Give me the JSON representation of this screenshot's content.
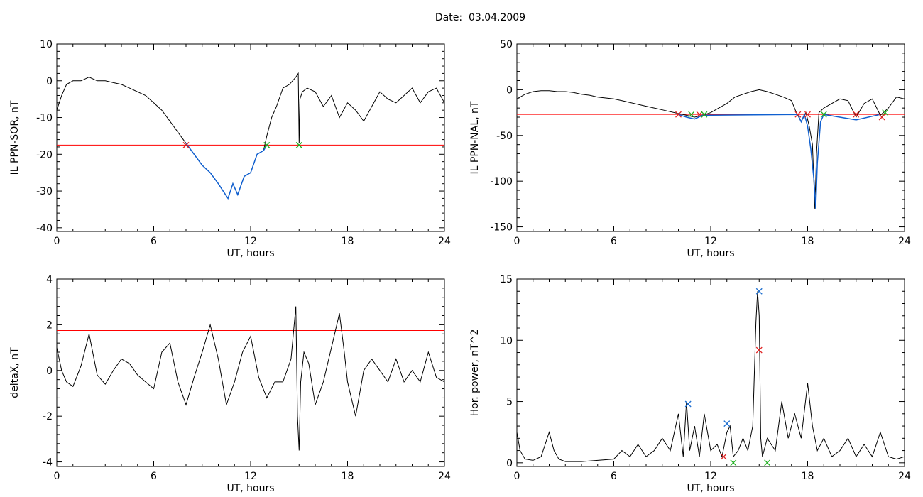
{
  "title": "Date:  03.04.2009",
  "colors": {
    "trace": "#000000",
    "threshold": "#ff0000",
    "highlight": "#1060d0",
    "marker_red": "#e02020",
    "marker_green": "#20b020",
    "marker_blue": "#2070d0"
  },
  "chart_data": [
    {
      "type": "line",
      "xlabel": "UT, hours",
      "ylabel": "IL PPN-SOR, nT",
      "xlim": [
        0,
        24
      ],
      "ylim": [
        -41,
        10
      ],
      "xticks": [
        "0",
        "6",
        "12",
        "18",
        "24"
      ],
      "xtick_values": [
        0,
        6,
        12,
        18,
        24
      ],
      "yticks": [
        "10",
        "0",
        "-10",
        "-20",
        "-30",
        "-40"
      ],
      "ytick_values": [
        10,
        0,
        -10,
        -20,
        -30,
        -40
      ],
      "threshold": -17.5,
      "series": [
        {
          "x": [
            0,
            0.3,
            0.6,
            1,
            1.5,
            2,
            2.5,
            3,
            3.5,
            4,
            4.5,
            5,
            5.5,
            6,
            6.5,
            7,
            7.5,
            8,
            8.5,
            9,
            9.5,
            10,
            10.3,
            10.6,
            10.9,
            11.2,
            11.6,
            12,
            12.4,
            12.8,
            13,
            13.3,
            13.6,
            14,
            14.4,
            14.6,
            14.8,
            14.95,
            15,
            15.05,
            15.2,
            15.5,
            16,
            16.5,
            17,
            17.5,
            18,
            18.5,
            19,
            19.5,
            20,
            20.5,
            21,
            21.5,
            22,
            22.5,
            23,
            23.5,
            24
          ],
          "y": [
            -8,
            -4,
            -1,
            0,
            0,
            1,
            0,
            0,
            -0.5,
            -1,
            -2,
            -3,
            -4,
            -6,
            -8,
            -11,
            -14,
            -17,
            -20,
            -23,
            -25,
            -28,
            -30,
            -32,
            -28,
            -31,
            -26,
            -25,
            -20,
            -19,
            -15,
            -10,
            -7,
            -2,
            -1,
            0,
            1,
            2,
            -17,
            -5,
            -3,
            -2,
            -3,
            -7,
            -4,
            -10,
            -6,
            -8,
            -11,
            -7,
            -3,
            -5,
            -6,
            -4,
            -2,
            -6,
            -3,
            -2,
            -6
          ]
        }
      ],
      "highlight": {
        "x": [
          8,
          8.5,
          9,
          9.5,
          10,
          10.3,
          10.6,
          10.9,
          11.2,
          11.6,
          12,
          12.4,
          12.8,
          13
        ],
        "y": [
          -17,
          -20,
          -23,
          -25,
          -28,
          -30,
          -32,
          -28,
          -31,
          -26,
          -25,
          -20,
          -19,
          -17.5
        ]
      },
      "markers": [
        {
          "x": 8,
          "y": -17.5,
          "color": "red"
        },
        {
          "x": 13,
          "y": -17.5,
          "color": "green"
        },
        {
          "x": 15,
          "y": -17.5,
          "color": "green"
        }
      ]
    },
    {
      "type": "line",
      "xlabel": "UT, hours",
      "ylabel": "IL PPN-NAL, nT",
      "xlim": [
        0,
        24
      ],
      "ylim": [
        -155,
        50
      ],
      "xticks": [
        "0",
        "6",
        "12",
        "18",
        "24"
      ],
      "xtick_values": [
        0,
        6,
        12,
        18,
        24
      ],
      "yticks": [
        "50",
        "0",
        "-50",
        "-100",
        "-150"
      ],
      "ytick_values": [
        50,
        0,
        -50,
        -100,
        -150
      ],
      "threshold": -27,
      "series": [
        {
          "x": [
            0,
            0.5,
            1,
            1.5,
            2,
            2.5,
            3,
            3.5,
            4,
            4.5,
            5,
            5.5,
            6,
            6.5,
            7,
            7.5,
            8,
            8.5,
            9,
            9.5,
            10,
            10.5,
            11,
            11.5,
            12,
            12.5,
            13,
            13.5,
            14,
            14.5,
            15,
            15.5,
            16,
            16.5,
            17,
            17.3,
            17.6,
            17.9,
            18.1,
            18.3,
            18.45,
            18.55,
            18.7,
            19,
            19.5,
            20,
            20.5,
            21,
            21.5,
            22,
            22.5,
            23,
            23.5,
            24
          ],
          "y": [
            -10,
            -5,
            -2,
            -1,
            -1,
            -2,
            -2,
            -3,
            -5,
            -6,
            -8,
            -9,
            -10,
            -12,
            -14,
            -16,
            -18,
            -20,
            -22,
            -24,
            -26,
            -28,
            -30,
            -28,
            -25,
            -20,
            -15,
            -8,
            -5,
            -2,
            0,
            -2,
            -5,
            -8,
            -12,
            -25,
            -35,
            -25,
            -40,
            -60,
            -130,
            -70,
            -25,
            -20,
            -15,
            -10,
            -12,
            -30,
            -15,
            -10,
            -28,
            -20,
            -8,
            -10
          ]
        }
      ],
      "highlight": {
        "x": [
          10,
          10.5,
          11,
          11.5,
          17.4,
          17.6,
          17.8,
          18,
          18.2,
          18.4,
          18.5,
          18.6,
          18.8,
          19,
          21,
          22.5
        ],
        "y": [
          -27,
          -30,
          -32,
          -28,
          -27,
          -35,
          -27,
          -40,
          -65,
          -100,
          -130,
          -80,
          -35,
          -27,
          -33,
          -27
        ]
      },
      "markers": [
        {
          "x": 10,
          "y": -27,
          "color": "red"
        },
        {
          "x": 10.8,
          "y": -27,
          "color": "green"
        },
        {
          "x": 11.3,
          "y": -27,
          "color": "red"
        },
        {
          "x": 11.6,
          "y": -27,
          "color": "green"
        },
        {
          "x": 17.4,
          "y": -27,
          "color": "red"
        },
        {
          "x": 18,
          "y": -27,
          "color": "red"
        },
        {
          "x": 19,
          "y": -27,
          "color": "green"
        },
        {
          "x": 21,
          "y": -27,
          "color": "red"
        },
        {
          "x": 22.6,
          "y": -30,
          "color": "red"
        },
        {
          "x": 22.8,
          "y": -25,
          "color": "green"
        }
      ]
    },
    {
      "type": "line",
      "xlabel": "UT, hours",
      "ylabel": "deltaX, nT",
      "xlim": [
        0,
        24
      ],
      "ylim": [
        -4.2,
        4
      ],
      "xticks": [
        "0",
        "6",
        "12",
        "18",
        "24"
      ],
      "xtick_values": [
        0,
        6,
        12,
        18,
        24
      ],
      "yticks": [
        "4",
        "2",
        "0",
        "-2",
        "-4"
      ],
      "ytick_values": [
        4,
        2,
        0,
        -2,
        -4
      ],
      "threshold": 1.75,
      "series": [
        {
          "x": [
            0,
            0.3,
            0.6,
            1,
            1.5,
            2,
            2.5,
            3,
            3.5,
            4,
            4.5,
            5,
            5.5,
            6,
            6.5,
            7,
            7.5,
            8,
            8.5,
            9,
            9.5,
            10,
            10.5,
            11,
            11.5,
            12,
            12.5,
            13,
            13.5,
            14,
            14.5,
            14.8,
            14.9,
            15,
            15.1,
            15.3,
            15.6,
            16,
            16.5,
            17,
            17.5,
            17.8,
            18,
            18.5,
            19,
            19.5,
            20,
            20.5,
            21,
            21.5,
            22,
            22.5,
            23,
            23.5,
            24
          ],
          "y": [
            1,
            0,
            -0.5,
            -0.7,
            0.2,
            1.6,
            -0.2,
            -0.6,
            0,
            0.5,
            0.3,
            -0.2,
            -0.5,
            -0.8,
            0.8,
            1.2,
            -0.5,
            -1.5,
            -0.3,
            0.8,
            2,
            0.5,
            -1.5,
            -0.5,
            0.8,
            1.5,
            -0.3,
            -1.2,
            -0.5,
            -0.5,
            0.5,
            2.8,
            -2,
            -3.5,
            -0.5,
            0.8,
            0.3,
            -1.5,
            -0.5,
            1,
            2.5,
            0.8,
            -0.5,
            -2,
            0,
            0.5,
            0,
            -0.5,
            0.5,
            -0.5,
            0,
            -0.5,
            0.8,
            -0.3,
            -0.5
          ]
        }
      ],
      "highlight": null,
      "markers": []
    },
    {
      "type": "line",
      "xlabel": "UT, hours",
      "ylabel": "Hor. power, nT^2",
      "xlim": [
        0,
        24
      ],
      "ylim": [
        -0.3,
        15
      ],
      "xticks": [
        "0",
        "6",
        "12",
        "18",
        "24"
      ],
      "xtick_values": [
        0,
        6,
        12,
        18,
        24
      ],
      "yticks": [
        "15",
        "10",
        "5",
        "0"
      ],
      "ytick_values": [
        15,
        10,
        5,
        0
      ],
      "threshold": null,
      "series": [
        {
          "x": [
            0,
            0.2,
            0.5,
            1,
            1.5,
            2,
            2.3,
            2.6,
            3,
            4,
            5,
            6,
            6.5,
            7,
            7.5,
            8,
            8.5,
            9,
            9.5,
            10,
            10.3,
            10.5,
            10.7,
            11,
            11.3,
            11.6,
            12,
            12.4,
            12.7,
            13,
            13.2,
            13.4,
            13.7,
            14,
            14.3,
            14.6,
            14.8,
            14.9,
            15,
            15.1,
            15.2,
            15.5,
            16,
            16.4,
            16.8,
            17.2,
            17.6,
            18,
            18.3,
            18.6,
            19,
            19.5,
            20,
            20.5,
            21,
            21.5,
            22,
            22.5,
            23,
            23.5,
            24
          ],
          "y": [
            2.5,
            1,
            0.3,
            0.2,
            0.5,
            2.5,
            1,
            0.3,
            0.1,
            0.1,
            0.2,
            0.3,
            1,
            0.5,
            1.5,
            0.5,
            1,
            2,
            1,
            4,
            0.5,
            5,
            1,
            3,
            0.5,
            4,
            1,
            1.5,
            0.5,
            2.5,
            3,
            0.5,
            1,
            2,
            1,
            3,
            11.5,
            14,
            12,
            2,
            0.5,
            2,
            1,
            5,
            2,
            4,
            2,
            6.5,
            3,
            1,
            2,
            0.5,
            1,
            2,
            0.5,
            1.5,
            0.5,
            2.5,
            0.5,
            0.3,
            0.5
          ]
        }
      ],
      "highlight": null,
      "markers": [
        {
          "x": 10.6,
          "y": 4.8,
          "color": "blue"
        },
        {
          "x": 13,
          "y": 3.2,
          "color": "blue"
        },
        {
          "x": 15,
          "y": 14,
          "color": "blue"
        },
        {
          "x": 15,
          "y": 9.2,
          "color": "red"
        },
        {
          "x": 12.8,
          "y": 0.5,
          "color": "red"
        },
        {
          "x": 13.4,
          "y": 0,
          "color": "green"
        },
        {
          "x": 15.5,
          "y": 0,
          "color": "green"
        }
      ]
    }
  ]
}
